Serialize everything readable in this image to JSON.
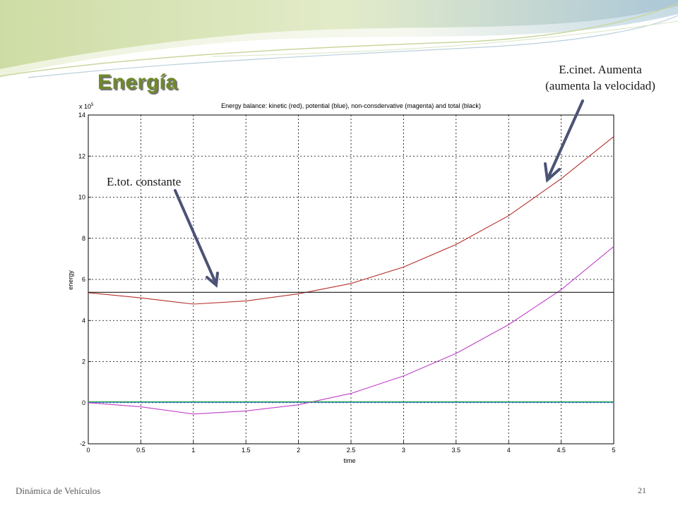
{
  "slide": {
    "title": "Energía",
    "footer_left": "Dinámica de Vehículos",
    "page_number": "21",
    "accent_color": "#6f8a2a"
  },
  "annotations": {
    "kinetic_line1": "E.cinet. Aumenta",
    "kinetic_line2": "(aumenta la velocidad)",
    "total": "E.tot. constante",
    "arrow_color": "#4b5375"
  },
  "chart_data": {
    "type": "line",
    "title": "Energy balance: kinetic (red), potential (blue), non-consdervative (magenta) and total (black)",
    "xlabel": "time",
    "ylabel": "energy",
    "y_multiplier": "x 10",
    "y_multiplier_exp": "5",
    "xlim": [
      0,
      5
    ],
    "ylim": [
      -2,
      14
    ],
    "x_ticks": [
      "0",
      "0.5",
      "1",
      "1.5",
      "2",
      "2.5",
      "3",
      "3.5",
      "4",
      "4.5",
      "5"
    ],
    "y_ticks": [
      "-2",
      "0",
      "2",
      "4",
      "6",
      "8",
      "10",
      "12",
      "14"
    ],
    "grid": true,
    "series": [
      {
        "name": "kinetic",
        "color": "#b5302b",
        "x": [
          0,
          0.5,
          1,
          1.5,
          2,
          2.5,
          3,
          3.5,
          4,
          4.5,
          5
        ],
        "y": [
          5.35,
          5.1,
          4.8,
          4.95,
          5.3,
          5.8,
          6.6,
          7.7,
          9.1,
          10.9,
          12.95
        ]
      },
      {
        "name": "potential",
        "color": "#2d7bd4",
        "x": [
          0,
          5
        ],
        "y": [
          0.02,
          0.02
        ]
      },
      {
        "name": "non-consdervative",
        "color": "#c040c8",
        "x": [
          0,
          0.5,
          1,
          1.5,
          2,
          2.5,
          3,
          3.5,
          4,
          4.5,
          5
        ],
        "y": [
          0,
          -0.2,
          -0.55,
          -0.4,
          -0.1,
          0.45,
          1.3,
          2.4,
          3.8,
          5.5,
          7.6
        ]
      },
      {
        "name": "total",
        "color": "#1a1a1a",
        "x": [
          0,
          5
        ],
        "y": [
          5.37,
          5.37
        ]
      },
      {
        "name": "reference",
        "color": "#2ea84a",
        "x": [
          0,
          5
        ],
        "y": [
          0.05,
          0.05
        ]
      }
    ]
  }
}
